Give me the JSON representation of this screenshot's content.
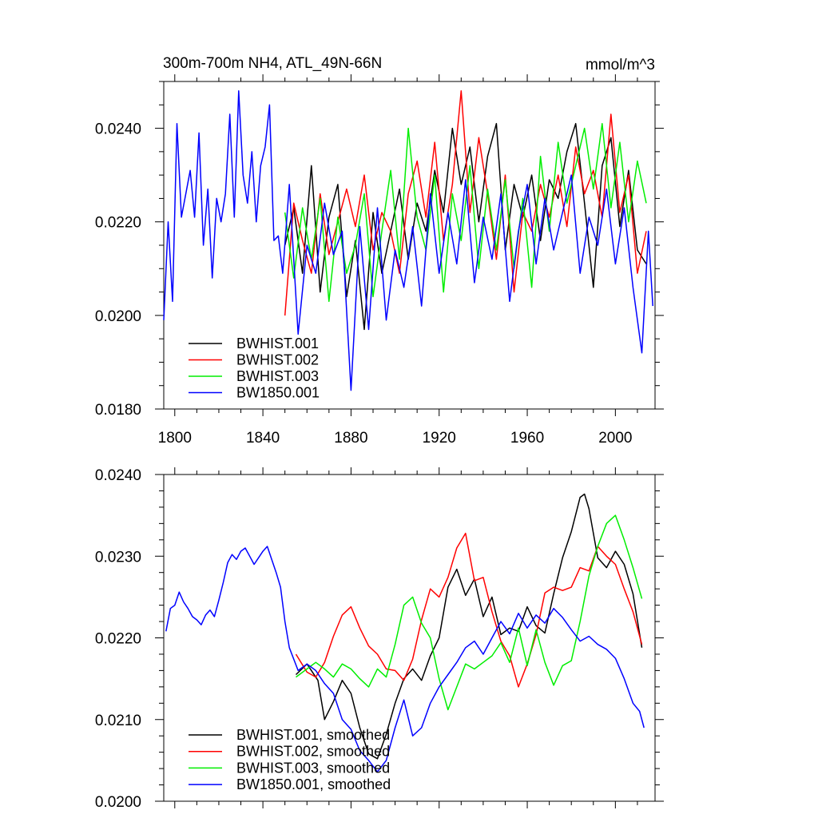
{
  "chart_data": [
    {
      "type": "line",
      "title": "300m-700m NH4, ATL_49N-66N",
      "units": "mmol/m^3",
      "xlim": [
        1795,
        2018
      ],
      "ylim": [
        0.018,
        0.025
      ],
      "xticks": [
        1800,
        1840,
        1880,
        1920,
        1960,
        2000
      ],
      "xtick_labels": [
        "1800",
        "1840",
        "1880",
        "1920",
        "1960",
        "2000"
      ],
      "yticks": [
        0.018,
        0.02,
        0.022,
        0.024
      ],
      "ytick_labels": [
        "0.0180",
        "0.0200",
        "0.0220",
        "0.0240"
      ],
      "legend_position": "bottom-left",
      "series": [
        {
          "name": "BWHIST.001",
          "color": "#000000",
          "x": [
            1850,
            1854,
            1858,
            1862,
            1866,
            1870,
            1874,
            1878,
            1882,
            1886,
            1890,
            1894,
            1898,
            1902,
            1906,
            1910,
            1914,
            1918,
            1922,
            1926,
            1930,
            1934,
            1938,
            1942,
            1946,
            1950,
            1954,
            1958,
            1962,
            1966,
            1970,
            1974,
            1978,
            1982,
            1986,
            1990,
            1994,
            1998,
            2002,
            2006,
            2010,
            2014
          ],
          "y": [
            0.0215,
            0.0223,
            0.0209,
            0.0232,
            0.0205,
            0.0221,
            0.0228,
            0.0204,
            0.0216,
            0.0197,
            0.0222,
            0.0209,
            0.0218,
            0.0227,
            0.0212,
            0.0224,
            0.0218,
            0.0231,
            0.0222,
            0.024,
            0.0228,
            0.0236,
            0.022,
            0.0234,
            0.0241,
            0.0214,
            0.0228,
            0.0221,
            0.023,
            0.0216,
            0.0229,
            0.0225,
            0.0235,
            0.0241,
            0.0224,
            0.0206,
            0.0232,
            0.0238,
            0.0219,
            0.0231,
            0.0214,
            0.0211
          ]
        },
        {
          "name": "BWHIST.002",
          "color": "#ff0000",
          "x": [
            1850,
            1854,
            1858,
            1862,
            1866,
            1870,
            1874,
            1878,
            1882,
            1886,
            1890,
            1894,
            1898,
            1902,
            1906,
            1910,
            1914,
            1918,
            1922,
            1926,
            1930,
            1934,
            1938,
            1942,
            1946,
            1950,
            1954,
            1958,
            1962,
            1966,
            1970,
            1974,
            1978,
            1982,
            1986,
            1990,
            1994,
            1998,
            2002,
            2006,
            2010,
            2014
          ],
          "y": [
            0.02,
            0.0224,
            0.0216,
            0.0209,
            0.0226,
            0.0213,
            0.022,
            0.0227,
            0.0219,
            0.023,
            0.0214,
            0.0222,
            0.0218,
            0.0209,
            0.0226,
            0.0233,
            0.0221,
            0.0237,
            0.0216,
            0.0228,
            0.0248,
            0.0222,
            0.0238,
            0.0226,
            0.0212,
            0.023,
            0.0205,
            0.0222,
            0.0218,
            0.0228,
            0.0221,
            0.023,
            0.0219,
            0.0236,
            0.0226,
            0.0231,
            0.0221,
            0.0243,
            0.0222,
            0.023,
            0.0209,
            0.0218
          ]
        },
        {
          "name": "BWHIST.003",
          "color": "#00ee00",
          "x": [
            1850,
            1854,
            1858,
            1862,
            1866,
            1870,
            1874,
            1878,
            1882,
            1886,
            1890,
            1894,
            1898,
            1902,
            1906,
            1910,
            1914,
            1918,
            1922,
            1926,
            1930,
            1934,
            1938,
            1942,
            1946,
            1950,
            1954,
            1958,
            1962,
            1966,
            1970,
            1974,
            1978,
            1982,
            1986,
            1990,
            1994,
            1998,
            2002,
            2006,
            2010,
            2014
          ],
          "y": [
            0.0222,
            0.0208,
            0.0223,
            0.0212,
            0.0225,
            0.0203,
            0.0221,
            0.0209,
            0.0215,
            0.0226,
            0.0204,
            0.0218,
            0.0231,
            0.0212,
            0.024,
            0.0221,
            0.0214,
            0.023,
            0.0205,
            0.0226,
            0.0216,
            0.0232,
            0.021,
            0.0227,
            0.0214,
            0.0229,
            0.021,
            0.0225,
            0.0206,
            0.0234,
            0.0218,
            0.0237,
            0.0224,
            0.0232,
            0.024,
            0.0227,
            0.0241,
            0.0223,
            0.0237,
            0.022,
            0.0233,
            0.0224
          ]
        },
        {
          "name": "BW1850.001",
          "color": "#0000ff",
          "x": [
            1795,
            1797,
            1799,
            1801,
            1803,
            1805,
            1807,
            1809,
            1811,
            1813,
            1815,
            1817,
            1819,
            1821,
            1823,
            1825,
            1827,
            1829,
            1831,
            1833,
            1835,
            1837,
            1839,
            1841,
            1843,
            1845,
            1847,
            1849,
            1852,
            1856,
            1860,
            1864,
            1868,
            1872,
            1876,
            1880,
            1884,
            1888,
            1892,
            1896,
            1900,
            1904,
            1908,
            1912,
            1916,
            1920,
            1924,
            1928,
            1932,
            1936,
            1940,
            1944,
            1948,
            1952,
            1956,
            1960,
            1964,
            1968,
            1972,
            1976,
            1980,
            1984,
            1988,
            1992,
            1996,
            2000,
            2004,
            2008,
            2012,
            2015,
            2017
          ],
          "y": [
            0.0199,
            0.022,
            0.0203,
            0.0241,
            0.0221,
            0.0226,
            0.0231,
            0.0221,
            0.0239,
            0.0215,
            0.0227,
            0.0208,
            0.0225,
            0.022,
            0.0226,
            0.0243,
            0.0221,
            0.0248,
            0.023,
            0.0224,
            0.0235,
            0.022,
            0.0232,
            0.0236,
            0.0245,
            0.0216,
            0.0217,
            0.0209,
            0.0228,
            0.0196,
            0.0215,
            0.0209,
            0.0224,
            0.0213,
            0.0218,
            0.0184,
            0.0219,
            0.0197,
            0.0223,
            0.0199,
            0.0214,
            0.0206,
            0.0219,
            0.0202,
            0.0226,
            0.0209,
            0.0222,
            0.0211,
            0.0229,
            0.0207,
            0.0221,
            0.0212,
            0.0226,
            0.0203,
            0.0218,
            0.0228,
            0.0211,
            0.0225,
            0.0214,
            0.0222,
            0.023,
            0.0209,
            0.0221,
            0.0215,
            0.0227,
            0.0211,
            0.0223,
            0.0206,
            0.0192,
            0.0218,
            0.0202
          ]
        }
      ]
    },
    {
      "type": "line",
      "xlim": [
        1795,
        2018
      ],
      "ylim": [
        0.02,
        0.024
      ],
      "xticks": [
        1800,
        1840,
        1880,
        1920,
        1960,
        2000
      ],
      "yticks": [
        0.02,
        0.021,
        0.022,
        0.023,
        0.024
      ],
      "ytick_labels": [
        "0.0200",
        "0.0210",
        "0.0220",
        "0.0230",
        "0.0240"
      ],
      "legend_position": "bottom-left",
      "series": [
        {
          "name": "BWHIST.001, smoothed",
          "color": "#000000",
          "x": [
            1855,
            1860,
            1865,
            1868,
            1872,
            1876,
            1880,
            1884,
            1888,
            1892,
            1896,
            1900,
            1904,
            1908,
            1912,
            1916,
            1920,
            1924,
            1928,
            1932,
            1936,
            1940,
            1944,
            1948,
            1952,
            1956,
            1960,
            1964,
            1968,
            1972,
            1976,
            1980,
            1984,
            1986,
            1988,
            1992,
            1996,
            2000,
            2004,
            2008,
            2012
          ],
          "y": [
            0.02155,
            0.02168,
            0.02148,
            0.021,
            0.02122,
            0.02148,
            0.02132,
            0.0209,
            0.02058,
            0.02052,
            0.02082,
            0.0212,
            0.0215,
            0.02162,
            0.02148,
            0.02178,
            0.022,
            0.02262,
            0.02284,
            0.02252,
            0.02272,
            0.02226,
            0.0225,
            0.02204,
            0.02212,
            0.02208,
            0.02238,
            0.02215,
            0.02206,
            0.02254,
            0.02298,
            0.0233,
            0.02372,
            0.02376,
            0.02358,
            0.02298,
            0.02286,
            0.02306,
            0.0229,
            0.02254,
            0.02188
          ]
        },
        {
          "name": "BWHIST.002, smoothed",
          "color": "#ff0000",
          "x": [
            1855,
            1860,
            1864,
            1868,
            1872,
            1876,
            1880,
            1884,
            1888,
            1892,
            1896,
            1900,
            1904,
            1908,
            1912,
            1916,
            1920,
            1924,
            1928,
            1932,
            1936,
            1940,
            1944,
            1948,
            1952,
            1956,
            1960,
            1964,
            1968,
            1972,
            1976,
            1980,
            1984,
            1988,
            1992,
            1996,
            2000,
            2004,
            2008,
            2012
          ],
          "y": [
            0.0218,
            0.02158,
            0.02152,
            0.0217,
            0.02202,
            0.02228,
            0.02238,
            0.02212,
            0.0219,
            0.0218,
            0.02162,
            0.0216,
            0.02148,
            0.02174,
            0.02222,
            0.0226,
            0.0225,
            0.02274,
            0.0231,
            0.02328,
            0.0227,
            0.02274,
            0.02232,
            0.02196,
            0.02178,
            0.0214,
            0.02168,
            0.02204,
            0.02255,
            0.02262,
            0.02258,
            0.02262,
            0.02286,
            0.02282,
            0.02312,
            0.023,
            0.0229,
            0.0226,
            0.02232,
            0.02192
          ]
        },
        {
          "name": "BWHIST.003, smoothed",
          "color": "#00ee00",
          "x": [
            1855,
            1860,
            1864,
            1868,
            1872,
            1876,
            1880,
            1884,
            1888,
            1892,
            1896,
            1900,
            1904,
            1908,
            1912,
            1916,
            1920,
            1924,
            1928,
            1932,
            1936,
            1940,
            1944,
            1948,
            1952,
            1956,
            1960,
            1964,
            1968,
            1972,
            1976,
            1980,
            1984,
            1988,
            1992,
            1996,
            2000,
            2004,
            2008,
            2012
          ],
          "y": [
            0.02152,
            0.02162,
            0.0217,
            0.02162,
            0.02152,
            0.02168,
            0.02162,
            0.0215,
            0.0214,
            0.02162,
            0.02152,
            0.02192,
            0.0224,
            0.0225,
            0.02218,
            0.022,
            0.0215,
            0.02112,
            0.0214,
            0.02168,
            0.02162,
            0.0217,
            0.02178,
            0.02194,
            0.0217,
            0.02212,
            0.02166,
            0.0221,
            0.0217,
            0.02142,
            0.02166,
            0.02172,
            0.0222,
            0.02276,
            0.02312,
            0.0234,
            0.0235,
            0.0232,
            0.02286,
            0.02248
          ]
        },
        {
          "name": "BW1850.001, smoothed",
          "color": "#0000ff",
          "x": [
            1796,
            1798,
            1800,
            1802,
            1804,
            1806,
            1808,
            1810,
            1812,
            1814,
            1816,
            1818,
            1820,
            1822,
            1824,
            1826,
            1828,
            1830,
            1832,
            1834,
            1836,
            1838,
            1840,
            1842,
            1844,
            1846,
            1848,
            1850,
            1852,
            1856,
            1860,
            1864,
            1868,
            1872,
            1876,
            1880,
            1884,
            1888,
            1892,
            1896,
            1900,
            1904,
            1908,
            1912,
            1916,
            1920,
            1924,
            1928,
            1932,
            1936,
            1940,
            1944,
            1948,
            1952,
            1956,
            1960,
            1964,
            1968,
            1972,
            1976,
            1980,
            1984,
            1988,
            1992,
            1996,
            2000,
            2004,
            2008,
            2011,
            2013
          ],
          "y": [
            0.02208,
            0.02236,
            0.0224,
            0.02256,
            0.02244,
            0.02236,
            0.02226,
            0.02222,
            0.02216,
            0.02228,
            0.02234,
            0.02226,
            0.02246,
            0.02268,
            0.02292,
            0.02302,
            0.02296,
            0.02306,
            0.0231,
            0.023,
            0.0229,
            0.02298,
            0.02306,
            0.02312,
            0.02296,
            0.0228,
            0.02262,
            0.0222,
            0.02188,
            0.0216,
            0.02168,
            0.0216,
            0.02144,
            0.02132,
            0.021,
            0.02088,
            0.02062,
            0.0205,
            0.02036,
            0.0205,
            0.0209,
            0.02124,
            0.0208,
            0.0209,
            0.0212,
            0.0214,
            0.02155,
            0.0217,
            0.02188,
            0.02196,
            0.0218,
            0.022,
            0.0222,
            0.02205,
            0.0223,
            0.02212,
            0.02228,
            0.02218,
            0.02236,
            0.02225,
            0.0221,
            0.02196,
            0.02202,
            0.02192,
            0.02186,
            0.02175,
            0.0215,
            0.0212,
            0.0211,
            0.0209
          ]
        }
      ]
    }
  ]
}
